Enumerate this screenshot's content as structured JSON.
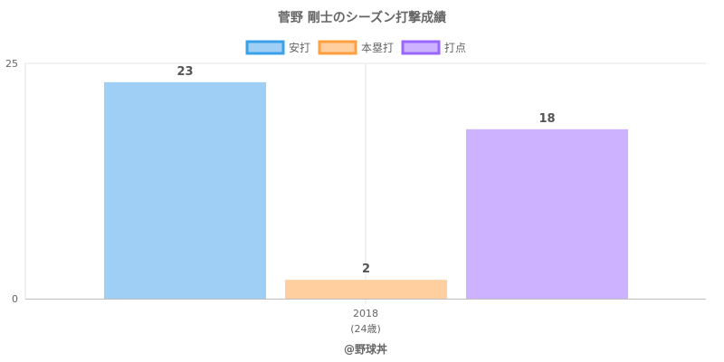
{
  "chart_data": {
    "type": "bar",
    "title": "菅野 剛士のシーズン打撃成績",
    "categories": [
      "2018"
    ],
    "category_sublabels": [
      "(24歳)"
    ],
    "series": [
      {
        "name": "安打",
        "values": [
          23
        ],
        "fill": "#9fcff5",
        "stroke": "#3aa0e8"
      },
      {
        "name": "本塁打",
        "values": [
          2
        ],
        "fill": "#ffcf9f",
        "stroke": "#ff9f40"
      },
      {
        "name": "打点",
        "values": [
          18
        ],
        "fill": "#cdb3ff",
        "stroke": "#9966ff"
      }
    ],
    "ylim": [
      0,
      25
    ],
    "yticks": [
      "0",
      "25"
    ],
    "legend_position": "top",
    "grid": true,
    "footer": "@野球丼"
  }
}
